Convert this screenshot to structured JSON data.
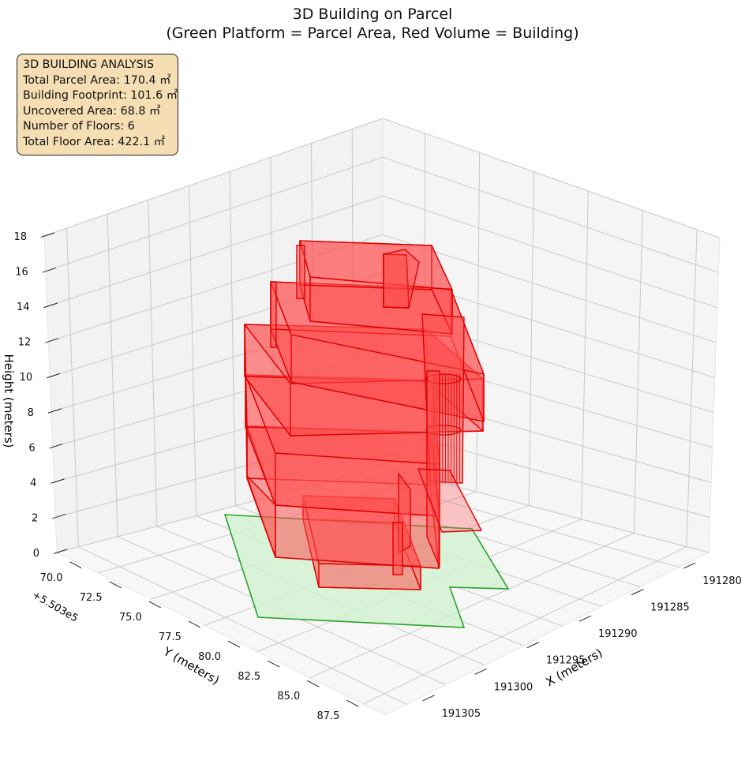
{
  "chart_data": {
    "type": "3d-polygons",
    "title": "3D Building on Parcel",
    "subtitle": "(Green Platform = Parcel Area, Red Volume = Building)",
    "xlabel": "X (meters)",
    "ylabel": "Y (meters)",
    "zlabel": "Height (meters)",
    "y_offset_label": "+5.503e5",
    "x_ticks": [
      "191280",
      "191285",
      "191290",
      "191295",
      "191300",
      "191305"
    ],
    "y_ticks": [
      "70.0",
      "72.5",
      "75.0",
      "77.5",
      "80.0",
      "82.5",
      "85.0",
      "87.5"
    ],
    "z_ticks": [
      "0",
      "2",
      "4",
      "6",
      "8",
      "10",
      "12",
      "14",
      "16",
      "18"
    ],
    "zlim": [
      0,
      18
    ],
    "grid": true,
    "colors": {
      "parcel": "#2ca02c",
      "parcel_fill": "#d4f2d4",
      "building": "#e00000",
      "building_fill": "#ff4d4d"
    },
    "parcel_area": "Green Platform",
    "building_volume": "Red Volume"
  },
  "info": {
    "title": "3D BUILDING ANALYSIS",
    "lines": [
      "Total Parcel Area: 170.4 ㎡",
      "Building Footprint: 101.6 ㎡",
      "Uncovered Area: 68.8 ㎡",
      "Number of Floors: 6",
      "Total Floor Area: 422.1 ㎡"
    ]
  }
}
